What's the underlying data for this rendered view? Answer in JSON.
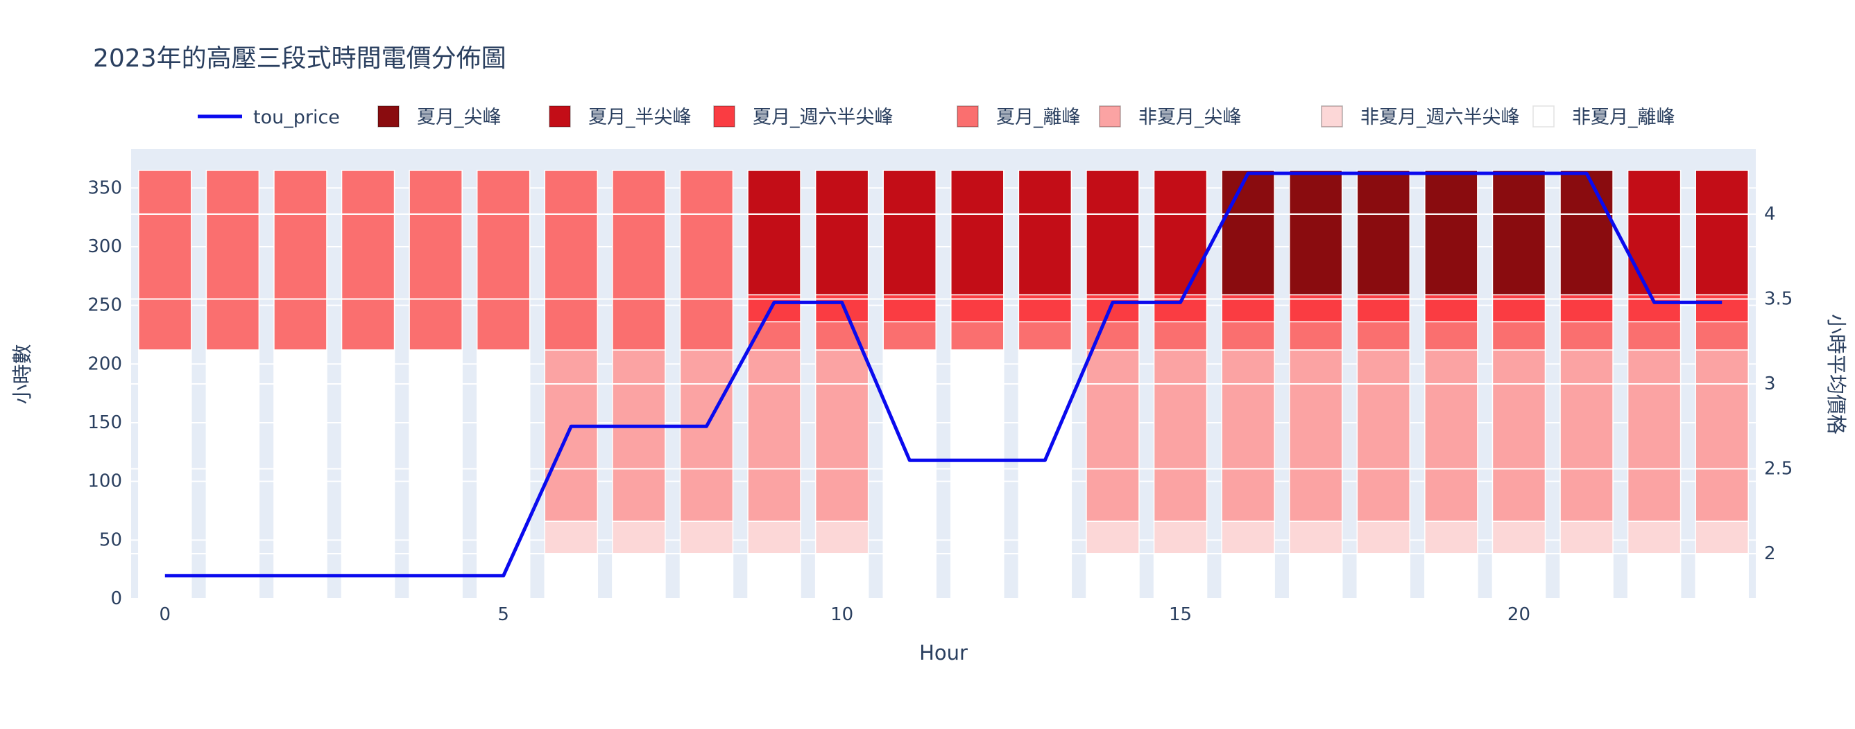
{
  "title": "2023年的高壓三段式時間電價分佈圖",
  "axes": {
    "x": {
      "title": "Hour",
      "ticks": [
        0,
        5,
        10,
        15,
        20
      ]
    },
    "y_left": {
      "title": "小時數",
      "ticks": [
        0,
        50,
        100,
        150,
        200,
        250,
        300,
        350
      ]
    },
    "y_right": {
      "title": "小時平均價格",
      "ticks": [
        2,
        2.5,
        3,
        3.5,
        4
      ]
    }
  },
  "colors": {
    "text": "#2a3f5f",
    "plot_background": "#e5ecf6",
    "gridline": "#ffffff",
    "tou_line": "#0a0aee"
  },
  "chart_data": {
    "type": "bar",
    "stacked": true,
    "title": "2023年的高壓三段式時間電價分佈圖",
    "xlabel": "Hour",
    "ylabel_left": "小時數",
    "ylabel_right": "小時平均價格",
    "x": [
      0,
      1,
      2,
      3,
      4,
      5,
      6,
      7,
      8,
      9,
      10,
      11,
      12,
      13,
      14,
      15,
      16,
      17,
      18,
      19,
      20,
      21,
      22,
      23
    ],
    "ylim_left": [
      0,
      383
    ],
    "ylim_right": [
      1.73,
      4.38
    ],
    "legend_position": "top",
    "grid": true,
    "series": [
      {
        "name": "夏月_尖峰",
        "color": "#8a0c0f",
        "values": [
          0,
          0,
          0,
          0,
          0,
          0,
          0,
          0,
          0,
          0,
          0,
          0,
          0,
          0,
          0,
          0,
          106,
          106,
          106,
          106,
          106,
          106,
          0,
          0
        ]
      },
      {
        "name": "夏月_半尖峰",
        "color": "#c30d17",
        "values": [
          0,
          0,
          0,
          0,
          0,
          0,
          0,
          0,
          0,
          106,
          106,
          106,
          106,
          106,
          106,
          106,
          0,
          0,
          0,
          0,
          0,
          0,
          106,
          106
        ]
      },
      {
        "name": "夏月_週六半尖峰",
        "color": "#fa3c42",
        "values": [
          0,
          0,
          0,
          0,
          0,
          0,
          0,
          0,
          0,
          23,
          23,
          23,
          23,
          23,
          23,
          23,
          23,
          23,
          23,
          23,
          23,
          23,
          23,
          23
        ]
      },
      {
        "name": "夏月_離峰",
        "color": "#fa6f6f",
        "values": [
          153,
          153,
          153,
          153,
          153,
          153,
          153,
          153,
          153,
          24,
          24,
          24,
          24,
          24,
          24,
          24,
          24,
          24,
          24,
          24,
          24,
          24,
          24,
          24
        ]
      },
      {
        "name": "非夏月_尖峰",
        "color": "#fba3a3",
        "values": [
          0,
          0,
          0,
          0,
          0,
          0,
          146,
          146,
          146,
          146,
          146,
          0,
          0,
          0,
          146,
          146,
          146,
          146,
          146,
          146,
          146,
          146,
          146,
          146
        ]
      },
      {
        "name": "非夏月_週六半尖峰",
        "color": "#fcd7d7",
        "values": [
          0,
          0,
          0,
          0,
          0,
          0,
          28,
          28,
          28,
          28,
          28,
          0,
          0,
          0,
          28,
          28,
          28,
          28,
          28,
          28,
          28,
          28,
          28,
          28
        ]
      },
      {
        "name": "非夏月_離峰",
        "color": "#ffffff",
        "values": [
          212,
          212,
          212,
          212,
          212,
          212,
          38,
          38,
          38,
          38,
          38,
          212,
          212,
          212,
          38,
          38,
          38,
          38,
          38,
          38,
          38,
          38,
          38,
          38
        ]
      }
    ],
    "line_series": {
      "name": "tou_price",
      "color": "#0a0aee",
      "axis": "right",
      "values": [
        1.87,
        1.87,
        1.87,
        1.87,
        1.87,
        1.87,
        2.75,
        2.75,
        2.75,
        3.48,
        3.48,
        2.55,
        2.55,
        2.55,
        3.48,
        3.48,
        4.24,
        4.24,
        4.24,
        4.24,
        4.24,
        4.24,
        3.48,
        3.48
      ]
    }
  }
}
